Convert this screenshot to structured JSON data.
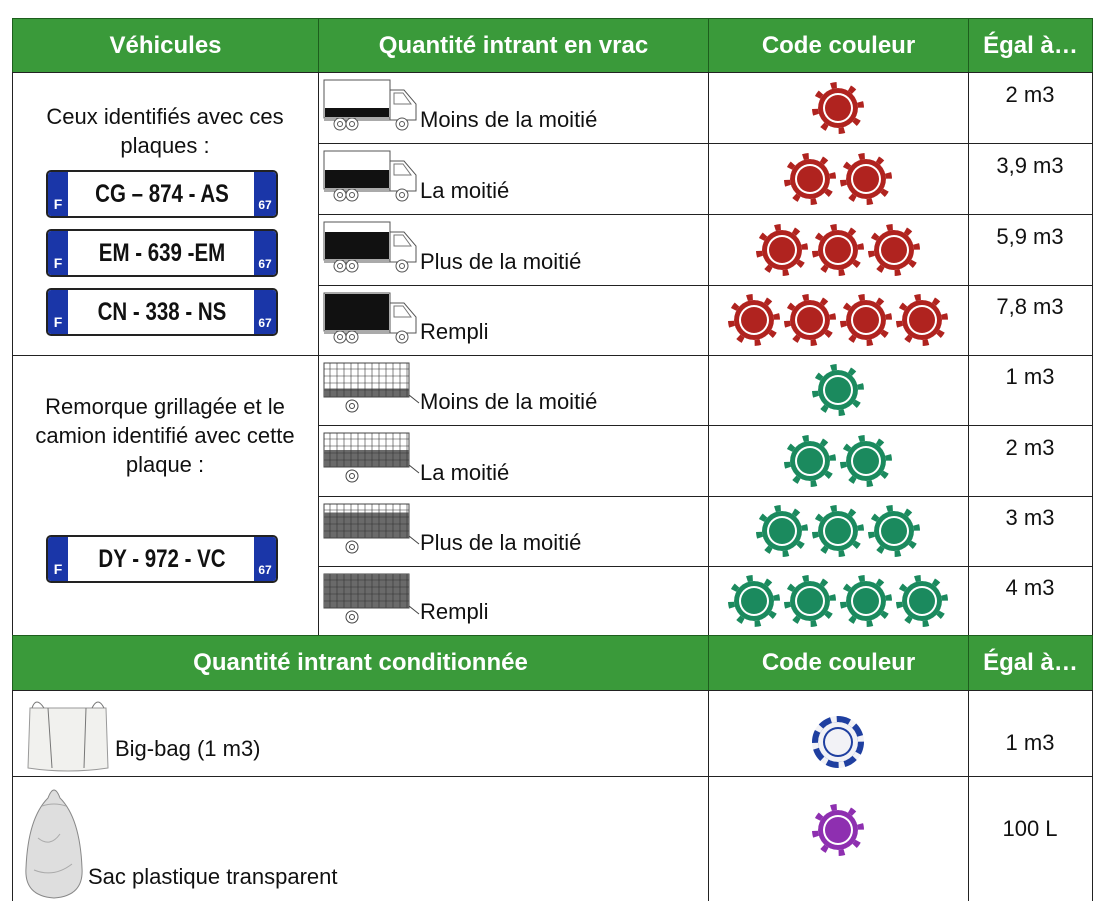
{
  "header": [
    "Véhicules",
    "Quantité intrant en vrac",
    "Code couleur",
    "Égal à…"
  ],
  "groups": [
    {
      "vehicle_text": "Ceux identifiés avec ces plaques :",
      "plates": [
        {
          "number": "CG – 874 - AS",
          "country": "F",
          "department": "67"
        },
        {
          "number": "EM - 639 -EM",
          "country": "F",
          "department": "67"
        },
        {
          "number": "CN - 338 - NS",
          "country": "F",
          "department": "67"
        }
      ],
      "chip_color": "#b0231f",
      "chip_edge": "#ffffff",
      "rows": [
        {
          "label": "Moins de la moitié",
          "chips": 1,
          "value": "2 m3"
        },
        {
          "label": "La moitié",
          "chips": 2,
          "value": "3,9 m3"
        },
        {
          "label": "Plus de la moitié",
          "chips": 3,
          "value": "5,9 m3"
        },
        {
          "label": "Rempli",
          "chips": 4,
          "value": "7,8 m3"
        }
      ]
    },
    {
      "vehicle_text": "Remorque grillagée et le camion identifié avec cette plaque :",
      "plates": [
        {
          "number": "DY - 972 - VC",
          "country": "F",
          "department": "67"
        }
      ],
      "chip_color": "#1b8a5e",
      "chip_edge": "#ffffff",
      "rows": [
        {
          "label": "Moins de la moitié",
          "chips": 1,
          "value": "1 m3"
        },
        {
          "label": "La moitié",
          "chips": 2,
          "value": "2 m3"
        },
        {
          "label": "Plus de la moitié",
          "chips": 3,
          "value": "3 m3"
        },
        {
          "label": "Rempli",
          "chips": 4,
          "value": "4 m3"
        }
      ]
    }
  ],
  "header2": [
    "Quantité intrant conditionnée",
    "Code couleur",
    "Égal à…"
  ],
  "items": [
    {
      "label": "Big-bag (1 m3)",
      "chips": 1,
      "chip_color": "#f2f2f6",
      "chip_edge": "#1f3fa0",
      "value": "1 m3"
    },
    {
      "label": "Sac plastique transparent",
      "chips": 1,
      "chip_color": "#8e2fb0",
      "chip_edge": "#ffffff",
      "value": "100 L"
    }
  ]
}
